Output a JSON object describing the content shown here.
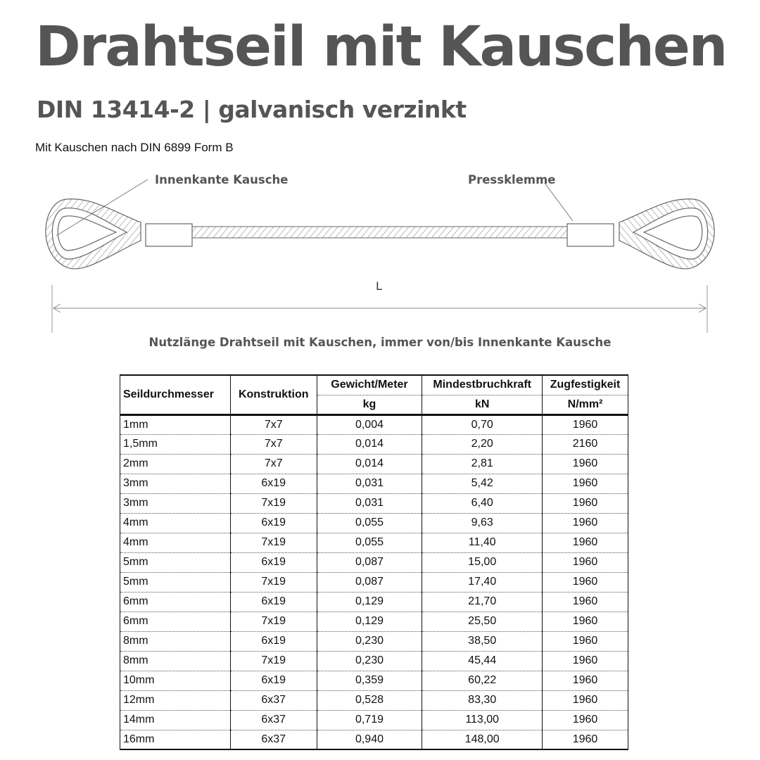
{
  "header": {
    "title": "Drahtseil mit Kauschen",
    "subtitle": "DIN 13414-2 | galvanisch verzinkt",
    "note": "Mit Kauschen nach DIN 6899 Form B"
  },
  "diagram": {
    "label_left": "Innenkante Kausche",
    "label_right": "Pressklemme",
    "length_label": "L",
    "caption": "Nutzlänge Drahtseil mit Kauschen, immer von/bis Innenkante Kausche"
  },
  "table": {
    "headers": [
      "Seildurchmesser",
      "Konstruktion",
      "Gewicht/Meter",
      "Mindestbruchkraft",
      "Zugfestigkeit"
    ],
    "units": [
      "kg",
      "kN",
      "N/mm²"
    ],
    "rows": [
      [
        "1mm",
        "7x7",
        "0,004",
        "0,70",
        "1960"
      ],
      [
        "1,5mm",
        "7x7",
        "0,014",
        "2,20",
        "2160"
      ],
      [
        "2mm",
        "7x7",
        "0,014",
        "2,81",
        "1960"
      ],
      [
        "3mm",
        "6x19",
        "0,031",
        "5,42",
        "1960"
      ],
      [
        "3mm",
        "7x19",
        "0,031",
        "6,40",
        "1960"
      ],
      [
        "4mm",
        "6x19",
        "0,055",
        "9,63",
        "1960"
      ],
      [
        "4mm",
        "7x19",
        "0,055",
        "11,40",
        "1960"
      ],
      [
        "5mm",
        "6x19",
        "0,087",
        "15,00",
        "1960"
      ],
      [
        "5mm",
        "7x19",
        "0,087",
        "17,40",
        "1960"
      ],
      [
        "6mm",
        "6x19",
        "0,129",
        "21,70",
        "1960"
      ],
      [
        "6mm",
        "7x19",
        "0,129",
        "25,50",
        "1960"
      ],
      [
        "8mm",
        "6x19",
        "0,230",
        "38,50",
        "1960"
      ],
      [
        "8mm",
        "7x19",
        "0,230",
        "45,44",
        "1960"
      ],
      [
        "10mm",
        "6x19",
        "0,359",
        "60,22",
        "1960"
      ],
      [
        "12mm",
        "6x37",
        "0,528",
        "83,30",
        "1960"
      ],
      [
        "14mm",
        "6x37",
        "0,719",
        "113,00",
        "1960"
      ],
      [
        "16mm",
        "6x37",
        "0,940",
        "148,00",
        "1960"
      ]
    ]
  }
}
